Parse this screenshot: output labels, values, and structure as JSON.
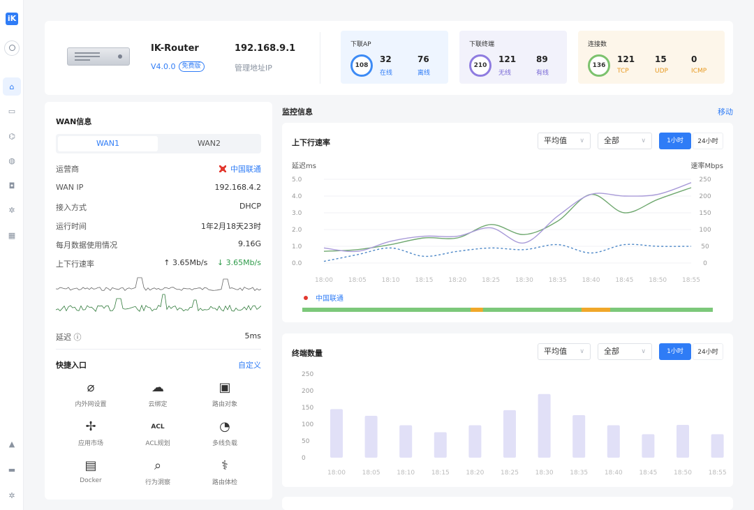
{
  "sidebar": {
    "logo": "iK",
    "items": [
      {
        "icon": "home-icon",
        "glyph": "⌂",
        "active": true
      },
      {
        "icon": "monitor-icon",
        "glyph": "▭",
        "active": false
      },
      {
        "icon": "network-icon",
        "glyph": "⌬",
        "active": false
      },
      {
        "icon": "globe-icon",
        "glyph": "◍",
        "active": false
      },
      {
        "icon": "shield-icon",
        "glyph": "◘",
        "active": false
      },
      {
        "icon": "gear-icon",
        "glyph": "✲",
        "active": false
      },
      {
        "icon": "apps-icon",
        "glyph": "▦",
        "active": false
      }
    ],
    "bottom_items": [
      {
        "icon": "bell-icon",
        "glyph": "▲"
      },
      {
        "icon": "message-icon",
        "glyph": "▬"
      },
      {
        "icon": "settings-icon",
        "glyph": "✲"
      }
    ]
  },
  "device": {
    "name": "IK-Router",
    "version": "V4.0.0",
    "badge": "免费版",
    "ip": "192.168.9.1",
    "ip_label": "管理地址IP"
  },
  "stats": [
    {
      "title": "下联AP",
      "total": "108",
      "a_val": "32",
      "a_lab": "在线",
      "b_val": "76",
      "b_lab": "离线",
      "bg": "#eef5ff",
      "ring": "#3d8bf5",
      "lab_color": "#2f7cf6"
    },
    {
      "title": "下联终端",
      "total": "210",
      "a_val": "121",
      "a_lab": "无线",
      "b_val": "89",
      "b_lab": "有线",
      "bg": "#f2f2fb",
      "ring": "#8f7ce0",
      "lab_color": "#7a6ad6"
    },
    {
      "title": "连接数",
      "total": "136",
      "a_val": "121",
      "a_lab": "TCP",
      "b_val": "15",
      "b_lab": "UDP",
      "c_val": "0",
      "c_lab": "ICMP",
      "bg": "#fdf6ea",
      "ring": "#7cc26e",
      "lab_color": "#e79a22"
    }
  ],
  "wan": {
    "title": "WAN信息",
    "tabs": [
      "WAN1",
      "WAN2"
    ],
    "rows": [
      {
        "label": "运营商",
        "value": "中国联通"
      },
      {
        "label": "WAN IP",
        "value": "192.168.4.2"
      },
      {
        "label": "接入方式",
        "value": "DHCP"
      },
      {
        "label": "运行时间",
        "value": "1年2月18天23时"
      },
      {
        "label": "每月数据使用情况",
        "value": "9.16G"
      }
    ],
    "speed_label": "上下行速率",
    "speed_up": "↑ 3.65Mb/s",
    "speed_down": "↓ 3.65Mb/s",
    "latency_label": "延迟 ⓘ",
    "latency_value": "5ms",
    "quick_title": "快捷入口",
    "quick_custom": "自定义",
    "quick_items": [
      {
        "label": "内外网设置",
        "icon": "planet-icon",
        "glyph": "⌀"
      },
      {
        "label": "云绑定",
        "icon": "cloud-icon",
        "glyph": "☁"
      },
      {
        "label": "路由对象",
        "icon": "object-icon",
        "glyph": "▣"
      },
      {
        "label": "应用市场",
        "icon": "puzzle-icon",
        "glyph": "✢"
      },
      {
        "label": "ACL规划",
        "icon": "acl-icon",
        "glyph": "ACL"
      },
      {
        "label": "多线负载",
        "icon": "gauge-icon",
        "glyph": "◔"
      },
      {
        "label": "Docker",
        "icon": "docker-icon",
        "glyph": "▤"
      },
      {
        "label": "行为洞察",
        "icon": "insight-icon",
        "glyph": "⌕"
      },
      {
        "label": "路由体检",
        "icon": "checkup-icon",
        "glyph": "⚕"
      }
    ]
  },
  "monitor": {
    "title": "监控信息",
    "move": "移动",
    "avg": "平均值",
    "all": "全部",
    "h1": "1小时",
    "h24": "24小时"
  },
  "chart_data": [
    {
      "type": "line",
      "title": "上下行速率",
      "ylabel": "延迟ms",
      "y2label": "速率Mbps",
      "x": [
        "18:00",
        "18:05",
        "18:10",
        "18:15",
        "18:20",
        "18:25",
        "18:30",
        "18:35",
        "18:40",
        "18:45",
        "18:50",
        "18:55"
      ],
      "ylim": [
        0,
        5.0
      ],
      "yticks": [
        "5.0",
        "4.0",
        "3.0",
        "2.0",
        "1.0",
        "0.0"
      ],
      "y2lim": [
        0,
        250
      ],
      "y2ticks": [
        "250",
        "200",
        "150",
        "100",
        "50",
        "0"
      ],
      "series": [
        {
          "values": [
            0.7,
            0.8,
            1.1,
            1.5,
            1.5,
            2.3,
            1.7,
            2.5,
            4.1,
            3.0,
            3.8,
            4.5
          ],
          "color": "#6fa86f"
        },
        {
          "values": [
            0.9,
            0.7,
            1.3,
            1.6,
            1.6,
            2.1,
            1.2,
            2.8,
            4.1,
            4.0,
            4.1,
            4.8
          ],
          "color": "#a89ad8"
        },
        {
          "values": [
            0.1,
            0.5,
            0.9,
            0.4,
            0.7,
            0.9,
            0.8,
            1.1,
            0.6,
            1.1,
            1.0,
            1.0
          ],
          "color": "#4c87c7",
          "dashed": true
        }
      ],
      "isp": "中国联通",
      "status_bar": {
        "base": "#7cc87a",
        "warn": "#f0a72a",
        "warn_ranges": [
          [
            0.41,
            0.44
          ],
          [
            0.68,
            0.75
          ]
        ]
      }
    },
    {
      "type": "bar",
      "title": "终端数量",
      "categories": [
        "18:00",
        "18:05",
        "18:10",
        "18:15",
        "18:20",
        "18:25",
        "18:30",
        "18:35",
        "18:40",
        "18:45",
        "18:50",
        "18:55"
      ],
      "values": [
        145,
        125,
        97,
        76,
        97,
        142,
        190,
        127,
        97,
        70,
        98,
        70
      ],
      "ylim": [
        0,
        250
      ],
      "yticks": [
        "250",
        "200",
        "150",
        "100",
        "50",
        "0"
      ],
      "color": "#e1e0f7"
    }
  ]
}
